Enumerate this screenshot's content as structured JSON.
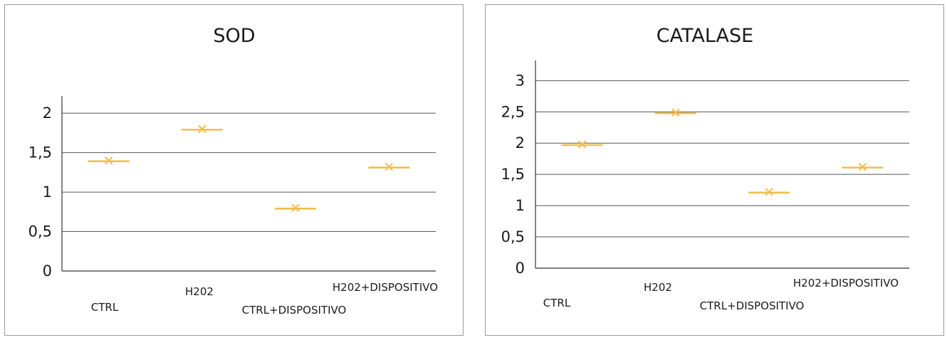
{
  "colors": {
    "marker": "#f2bd4c",
    "grid": "#555555",
    "axis": "#333333"
  },
  "chart_data": [
    {
      "type": "scatter",
      "title": "SOD",
      "categories": [
        "CTRL",
        "H202",
        "CTRL+DISPOSITIVO",
        "H202+DISPOSITIVO"
      ],
      "values": [
        1.4,
        1.8,
        0.8,
        1.32
      ],
      "ytick_labels": [
        "0",
        "0,5",
        "1",
        "1,5",
        "2"
      ],
      "ytick_values": [
        0,
        0.5,
        1,
        1.5,
        2
      ],
      "ylim": [
        0,
        2.2
      ],
      "grid": true,
      "legend": "none"
    },
    {
      "type": "scatter",
      "title": "CATALASE",
      "categories": [
        "CTRL",
        "H202",
        "CTRL+DISPOSITIVO",
        "H202+DISPOSITIVO"
      ],
      "values": [
        1.98,
        2.49,
        1.22,
        1.62
      ],
      "ytick_labels": [
        "0",
        "0,5",
        "1",
        "1,5",
        "2",
        "2,5",
        "3"
      ],
      "ytick_values": [
        0,
        0.5,
        1,
        1.5,
        2,
        2.5,
        3
      ],
      "ylim": [
        0,
        3.3
      ],
      "grid": true,
      "legend": "none"
    }
  ]
}
